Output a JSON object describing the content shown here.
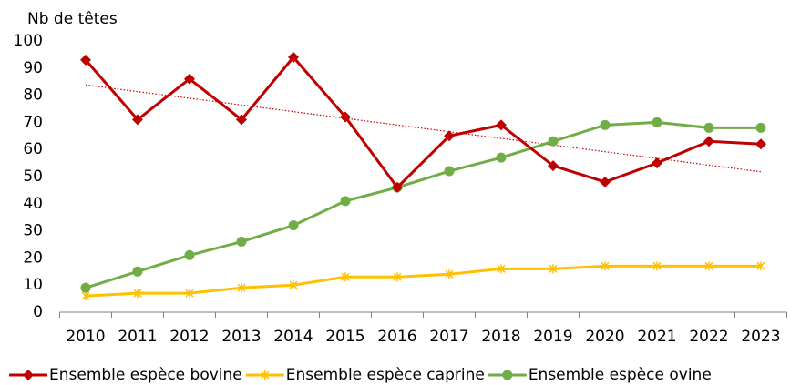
{
  "chart_data": {
    "type": "line",
    "y_label": "Nb de têtes",
    "categories": [
      "2010",
      "2011",
      "2012",
      "2013",
      "2014",
      "2015",
      "2016",
      "2017",
      "2018",
      "2019",
      "2020",
      "2021",
      "2022",
      "2023"
    ],
    "series": [
      {
        "name": "Ensemble espèce bovine",
        "color": "#c00000",
        "marker": "diamond",
        "values": [
          93,
          71,
          86,
          71,
          94,
          72,
          46,
          65,
          69,
          54,
          48,
          55,
          63,
          62
        ]
      },
      {
        "name": "Ensemble espèce caprine",
        "color": "#ffc000",
        "marker": "asterisk",
        "values": [
          6,
          7,
          7,
          9,
          10,
          13,
          13,
          14,
          16,
          16,
          17,
          17,
          17,
          17
        ]
      },
      {
        "name": "Ensemble espèce ovine",
        "color": "#70ad47",
        "marker": "circle",
        "values": [
          9,
          15,
          21,
          26,
          32,
          41,
          46,
          52,
          57,
          63,
          69,
          70,
          68,
          68
        ]
      }
    ],
    "trendline": {
      "series": 0,
      "color": "#c00000"
    },
    "ylim": [
      0,
      100
    ],
    "yticks": [
      0,
      10,
      20,
      30,
      40,
      50,
      60,
      70,
      80,
      90,
      100
    ],
    "grid": false,
    "legend": "bottom"
  }
}
